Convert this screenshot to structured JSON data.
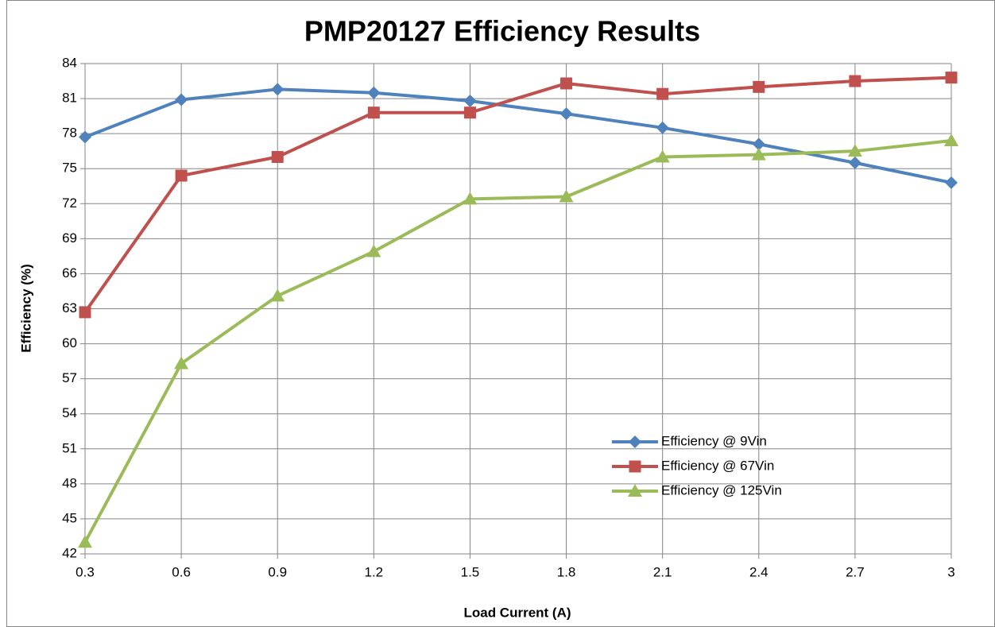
{
  "chart_data": {
    "type": "line",
    "title": "PMP20127 Efficiency Results",
    "x_label": "Load Current (A)",
    "y_label": "Efficiency (%)",
    "x": [
      0.3,
      0.6,
      0.9,
      1.2,
      1.5,
      1.8,
      2.1,
      2.4,
      2.7,
      3
    ],
    "series": [
      {
        "name": "Efficiency @ 9Vin",
        "color": "#4f81bd",
        "marker": "diamond",
        "values": [
          77.7,
          80.9,
          81.8,
          81.5,
          80.8,
          79.7,
          78.5,
          77.1,
          75.5,
          73.8
        ]
      },
      {
        "name": "Efficiency @ 67Vin",
        "color": "#c0504d",
        "marker": "square",
        "values": [
          62.7,
          74.4,
          76.0,
          79.8,
          79.8,
          82.3,
          81.4,
          82.0,
          82.5,
          82.8
        ]
      },
      {
        "name": "Efficiency @ 125Vin",
        "color": "#9bbb59",
        "marker": "triangle",
        "values": [
          43.0,
          58.3,
          64.1,
          67.9,
          72.4,
          72.6,
          76.0,
          76.2,
          76.5,
          77.4
        ]
      }
    ],
    "xlim": [
      0.3,
      3
    ],
    "xticks": [
      0.3,
      0.6,
      0.9,
      1.2,
      1.5,
      1.8,
      2.1,
      2.4,
      2.7,
      3
    ],
    "ylim": [
      42,
      84
    ],
    "yticks": [
      42,
      45,
      48,
      51,
      54,
      57,
      60,
      63,
      66,
      69,
      72,
      75,
      78,
      81,
      84
    ],
    "grid": true,
    "legend": "lower right"
  }
}
